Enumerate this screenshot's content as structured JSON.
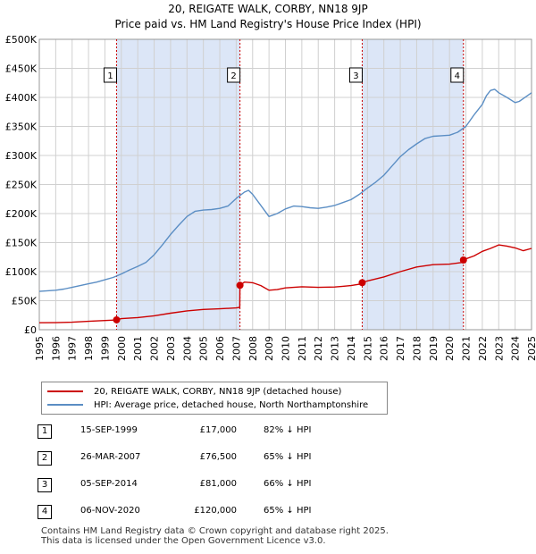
{
  "title_line1": "20, REIGATE WALK, CORBY, NN18 9JP",
  "title_line2": "Price paid vs. HM Land Registry's House Price Index (HPI)",
  "colors": {
    "property": "#cc0000",
    "hpi": "#5b8ec4",
    "band": "#dce6f7",
    "grid": "#d0d0d0",
    "marker_line": "#cc0000"
  },
  "legend": {
    "property_label": "20, REIGATE WALK, CORBY, NN18 9JP (detached house)",
    "hpi_label": "HPI: Average price, detached house, North Northamptonshire"
  },
  "transactions": [
    {
      "num": "1",
      "date": "15-SEP-1999",
      "price": "£17,000",
      "hpi": "82% ↓ HPI"
    },
    {
      "num": "2",
      "date": "26-MAR-2007",
      "price": "£76,500",
      "hpi": "65% ↓ HPI"
    },
    {
      "num": "3",
      "date": "05-SEP-2014",
      "price": "£81,000",
      "hpi": "66% ↓ HPI"
    },
    {
      "num": "4",
      "date": "06-NOV-2020",
      "price": "£120,000",
      "hpi": "65% ↓ HPI"
    }
  ],
  "footer": {
    "line1": "Contains HM Land Registry data © Crown copyright and database right 2025.",
    "line2": "This data is licensed under the Open Government Licence v3.0."
  },
  "chart_data": {
    "type": "line",
    "xlim": [
      1995,
      2025
    ],
    "ylim": [
      0,
      500000
    ],
    "y_ticks": [
      0,
      50000,
      100000,
      150000,
      200000,
      250000,
      300000,
      350000,
      400000,
      450000,
      500000
    ],
    "y_tick_labels": [
      "£0",
      "£50K",
      "£100K",
      "£150K",
      "£200K",
      "£250K",
      "£300K",
      "£350K",
      "£400K",
      "£450K",
      "£500K"
    ],
    "x_ticks": [
      "1995",
      "1996",
      "1997",
      "1998",
      "1999",
      "2000",
      "2001",
      "2002",
      "2003",
      "2004",
      "2005",
      "2006",
      "2007",
      "2008",
      "2009",
      "2010",
      "2011",
      "2012",
      "2013",
      "2014",
      "2015",
      "2016",
      "2017",
      "2018",
      "2019",
      "2020",
      "2021",
      "2022",
      "2023",
      "2024",
      "2025"
    ],
    "grid": true,
    "shaded_bands": [
      [
        1999.71,
        2007.23
      ],
      [
        2014.68,
        2020.85
      ]
    ],
    "sale_markers": [
      {
        "label": "1",
        "x": 1999.71,
        "y": 17000
      },
      {
        "label": "2",
        "x": 2007.23,
        "y": 76500
      },
      {
        "label": "3",
        "x": 2014.68,
        "y": 81000
      },
      {
        "label": "4",
        "x": 2020.85,
        "y": 120000
      }
    ],
    "series": [
      {
        "name": "20, REIGATE WALK, CORBY, NN18 9JP (detached house)",
        "x": [
          1995,
          1996,
          1997,
          1998,
          1999,
          1999.7,
          1999.71,
          2000,
          2001,
          2002,
          2003,
          2004,
          2005,
          2006,
          2007,
          2007.22,
          2007.23,
          2007.5,
          2008,
          2008.5,
          2009,
          2009.5,
          2010,
          2011,
          2012,
          2013,
          2014,
          2014.67,
          2014.68,
          2015,
          2016,
          2017,
          2018,
          2019,
          2020,
          2020.84,
          2020.85,
          2021,
          2021.5,
          2022,
          2022.5,
          2023,
          2023.5,
          2024,
          2024.5,
          2025
        ],
        "y": [
          12000,
          12200,
          13000,
          14500,
          15800,
          16800,
          17000,
          19000,
          21000,
          24000,
          28500,
          32500,
          35000,
          36000,
          37500,
          38500,
          76500,
          82000,
          81000,
          76000,
          68000,
          69000,
          72000,
          74000,
          73000,
          73500,
          76000,
          79000,
          81000,
          84000,
          91000,
          100000,
          108000,
          112000,
          113000,
          116000,
          120000,
          122000,
          127000,
          135000,
          140000,
          146000,
          144000,
          141000,
          136000,
          140000
        ]
      },
      {
        "name": "HPI: Average price, detached house, North Northamptonshire",
        "x": [
          1995,
          1995.5,
          1996,
          1996.5,
          1997,
          1997.5,
          1998,
          1998.5,
          1999,
          1999.5,
          2000,
          2000.5,
          2001,
          2001.5,
          2002,
          2002.5,
          2003,
          2003.5,
          2004,
          2004.5,
          2005,
          2005.5,
          2006,
          2006.5,
          2007,
          2007.5,
          2007.75,
          2008,
          2008.5,
          2009,
          2009.5,
          2010,
          2010.5,
          2011,
          2011.5,
          2012,
          2012.5,
          2013,
          2013.5,
          2014,
          2014.5,
          2015,
          2015.5,
          2016,
          2016.5,
          2017,
          2017.5,
          2018,
          2018.5,
          2019,
          2019.5,
          2020,
          2020.5,
          2021,
          2021.5,
          2022,
          2022.25,
          2022.5,
          2022.75,
          2023,
          2023.5,
          2024,
          2024.25,
          2024.5,
          2025
        ],
        "y": [
          66000,
          67000,
          68000,
          70000,
          73000,
          76000,
          79000,
          82000,
          86000,
          90000,
          96000,
          103000,
          109000,
          116000,
          129000,
          146000,
          164000,
          180000,
          195000,
          204000,
          206000,
          207000,
          209000,
          213000,
          226000,
          237000,
          240000,
          233000,
          214000,
          195000,
          200000,
          208000,
          213000,
          212000,
          210000,
          209000,
          211000,
          214000,
          219000,
          224000,
          233000,
          244000,
          254000,
          266000,
          282000,
          298000,
          310000,
          320000,
          329000,
          333000,
          334000,
          335000,
          340000,
          350000,
          370000,
          388000,
          403000,
          412000,
          414000,
          408000,
          400000,
          391000,
          393000,
          398000,
          408000
        ]
      }
    ]
  }
}
